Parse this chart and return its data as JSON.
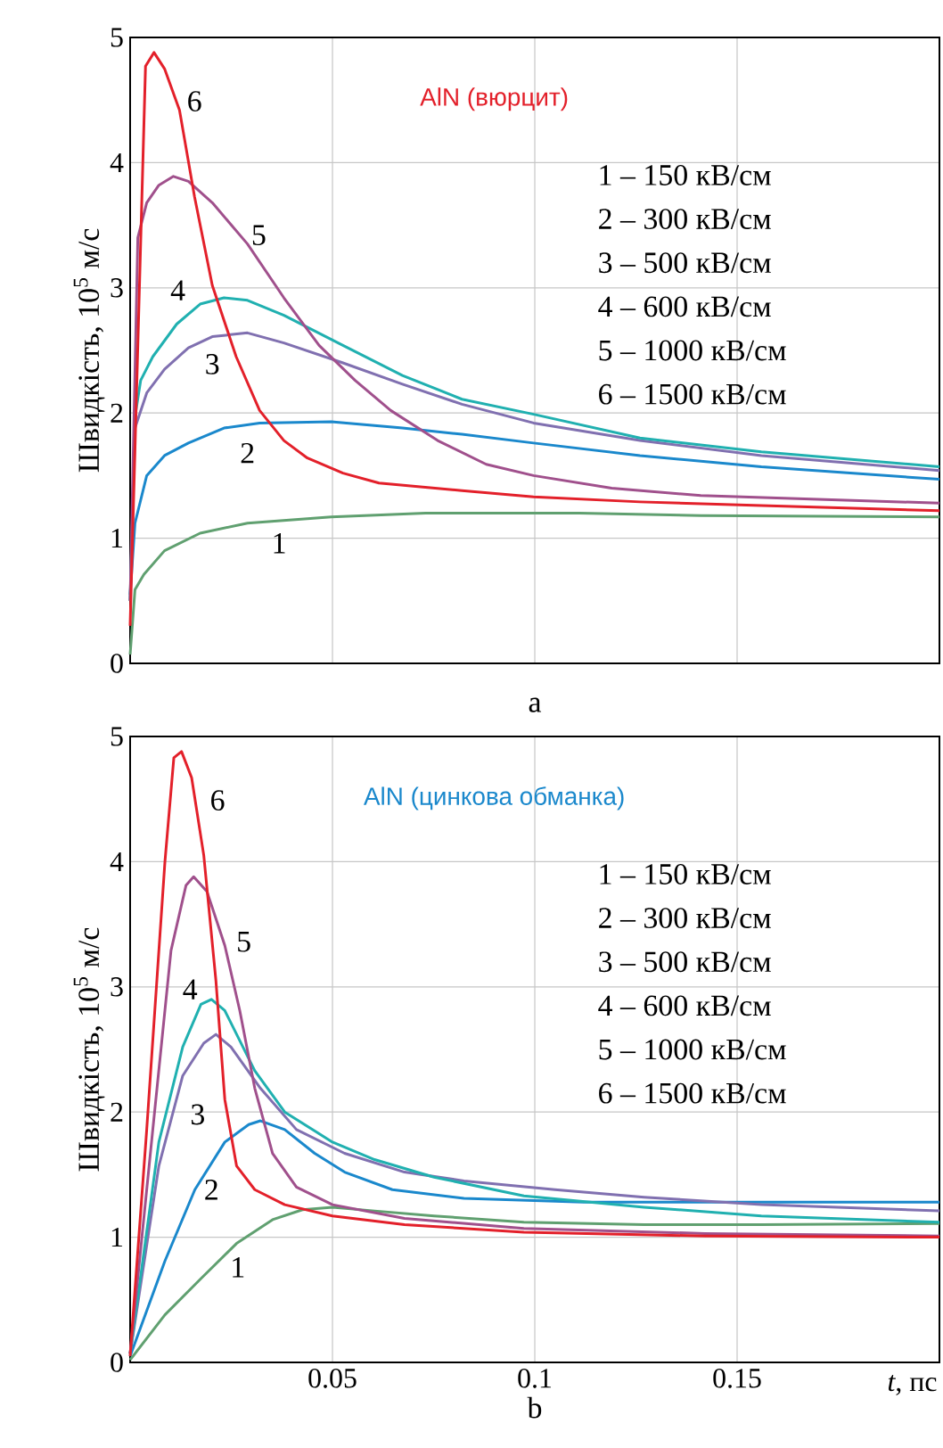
{
  "chart_data": [
    {
      "type": "line",
      "title": "AlN (вюрцит)",
      "subtitle": "a",
      "ylabel": "Швидкість, 10$^{5}$ м/с",
      "xlim": [
        0,
        0.2
      ],
      "ylim": [
        0,
        5
      ],
      "xticks": [
        0.05,
        0.1,
        0.15
      ],
      "yticks": [
        0,
        1,
        2,
        3,
        4,
        5
      ],
      "grid": true,
      "tick_labels": "y",
      "annotations": [
        "1 –   150 кВ/см",
        "2 –   300 кВ/см",
        "3 –   500 кВ/см",
        "4 –   600 кВ/см",
        "5 – 1000 кВ/см",
        "6 – 1500 кВ/см"
      ],
      "series": [
        {
          "name": "1",
          "color": "#60a070",
          "x": [
            0,
            0.0012,
            0.0034,
            0.0085,
            0.0173,
            0.029,
            0.0497,
            0.073,
            0.111,
            0.141,
            0.2
          ],
          "values": [
            0.07,
            0.59,
            0.71,
            0.9,
            1.04,
            1.12,
            1.17,
            1.2,
            1.2,
            1.18,
            1.17
          ]
        },
        {
          "name": "2",
          "color": "#1a88cc",
          "x": [
            0,
            0.0012,
            0.0041,
            0.0085,
            0.0144,
            0.0232,
            0.032,
            0.0497,
            0.0673,
            0.082,
            0.0997,
            0.126,
            0.156,
            0.2
          ],
          "values": [
            0.55,
            1.12,
            1.5,
            1.66,
            1.76,
            1.88,
            1.92,
            1.93,
            1.88,
            1.83,
            1.76,
            1.66,
            1.57,
            1.47
          ]
        },
        {
          "name": "3",
          "color": "#8070b0",
          "x": [
            0,
            0.0012,
            0.0041,
            0.0085,
            0.0144,
            0.0203,
            0.029,
            0.038,
            0.0526,
            0.0673,
            0.082,
            0.0997,
            0.126,
            0.156,
            0.2
          ],
          "values": [
            0.5,
            1.88,
            2.16,
            2.35,
            2.52,
            2.61,
            2.64,
            2.56,
            2.4,
            2.23,
            2.07,
            1.92,
            1.78,
            1.66,
            1.54
          ]
        },
        {
          "name": "4",
          "color": "#20b0b0",
          "x": [
            0,
            0.0012,
            0.0026,
            0.0056,
            0.0115,
            0.0173,
            0.0232,
            0.029,
            0.038,
            0.0526,
            0.0673,
            0.082,
            0.0997,
            0.126,
            0.156,
            0.2
          ],
          "values": [
            0.5,
            1.97,
            2.26,
            2.45,
            2.71,
            2.87,
            2.92,
            2.9,
            2.78,
            2.54,
            2.3,
            2.11,
            1.99,
            1.8,
            1.69,
            1.57
          ]
        },
        {
          "name": "5",
          "color": "#a0508c",
          "x": [
            0,
            0.0019,
            0.0041,
            0.0071,
            0.0107,
            0.0144,
            0.0203,
            0.029,
            0.038,
            0.0467,
            0.0556,
            0.0644,
            0.076,
            0.088,
            0.0997,
            0.119,
            0.141,
            0.17,
            0.2
          ],
          "values": [
            0.5,
            3.4,
            3.68,
            3.82,
            3.89,
            3.85,
            3.68,
            3.35,
            2.92,
            2.54,
            2.26,
            2.02,
            1.78,
            1.59,
            1.5,
            1.4,
            1.34,
            1.31,
            1.28
          ]
        },
        {
          "name": "6",
          "color": "#e3202a",
          "x": [
            0,
            0.0038,
            0.0059,
            0.0085,
            0.0122,
            0.0159,
            0.0203,
            0.0262,
            0.032,
            0.038,
            0.0438,
            0.0526,
            0.0615,
            0.082,
            0.0997,
            0.126,
            0.156,
            0.2
          ],
          "values": [
            0.3,
            4.77,
            4.88,
            4.75,
            4.42,
            3.73,
            3.02,
            2.45,
            2.02,
            1.78,
            1.64,
            1.52,
            1.44,
            1.38,
            1.33,
            1.29,
            1.26,
            1.22
          ]
        }
      ]
    },
    {
      "type": "line",
      "title": "AlN (цинкова обманка)",
      "subtitle": "b",
      "ylabel": "Швидкість, 10$^{5}$ м/с",
      "xlabel": "*t*, пс",
      "xlim": [
        0,
        0.2
      ],
      "ylim": [
        0,
        5
      ],
      "xticks": [
        0.05,
        0.1,
        0.15
      ],
      "yticks": [
        0,
        1,
        2,
        3,
        4,
        5
      ],
      "grid": true,
      "annotations": [
        "1 –   150 кВ/см",
        "2 –   300 кВ/см",
        "3 –   500 кВ/см",
        "4 –   600 кВ/см",
        "5 – 1000 кВ/см",
        "6 – 1500 кВ/см"
      ],
      "series": [
        {
          "name": "1",
          "color": "#60a070",
          "x": [
            0,
            0.0086,
            0.0175,
            0.0263,
            0.0352,
            0.0426,
            0.05,
            0.0604,
            0.0751,
            0.0973,
            0.127,
            0.156,
            0.2
          ],
          "values": [
            0.02,
            0.38,
            0.67,
            0.95,
            1.14,
            1.22,
            1.24,
            1.21,
            1.17,
            1.12,
            1.1,
            1.1,
            1.11
          ]
        },
        {
          "name": "2",
          "color": "#1a88cc",
          "x": [
            0,
            0.0086,
            0.016,
            0.0234,
            0.0293,
            0.0322,
            0.0382,
            0.0456,
            0.053,
            0.0648,
            0.0825,
            0.112,
            0.142,
            0.2
          ],
          "values": [
            0.05,
            0.81,
            1.38,
            1.76,
            1.9,
            1.93,
            1.86,
            1.67,
            1.52,
            1.38,
            1.31,
            1.28,
            1.28,
            1.28
          ]
        },
        {
          "name": "3",
          "color": "#8070b0",
          "x": [
            0,
            0.0071,
            0.013,
            0.0182,
            0.0212,
            0.0249,
            0.0322,
            0.0411,
            0.053,
            0.0678,
            0.0825,
            0.105,
            0.127,
            0.156,
            0.2
          ],
          "values": [
            0.07,
            1.57,
            2.29,
            2.55,
            2.62,
            2.52,
            2.19,
            1.86,
            1.67,
            1.52,
            1.45,
            1.38,
            1.32,
            1.26,
            1.21
          ]
        },
        {
          "name": "4",
          "color": "#20b0b0",
          "x": [
            0,
            0.0071,
            0.013,
            0.0175,
            0.0201,
            0.0234,
            0.0308,
            0.0382,
            0.05,
            0.0604,
            0.0751,
            0.0973,
            0.127,
            0.156,
            0.2
          ],
          "values": [
            0.07,
            1.76,
            2.52,
            2.86,
            2.9,
            2.81,
            2.33,
            2.0,
            1.76,
            1.62,
            1.48,
            1.33,
            1.24,
            1.17,
            1.12
          ]
        },
        {
          "name": "5",
          "color": "#a0508c",
          "x": [
            0,
            0.0056,
            0.0101,
            0.0138,
            0.0157,
            0.019,
            0.0234,
            0.0271,
            0.0308,
            0.0352,
            0.0411,
            0.05,
            0.0678,
            0.0973,
            0.142,
            0.2
          ],
          "values": [
            0.07,
            1.86,
            3.29,
            3.81,
            3.88,
            3.76,
            3.33,
            2.81,
            2.19,
            1.67,
            1.4,
            1.26,
            1.15,
            1.07,
            1.03,
            1.01
          ]
        },
        {
          "name": "6",
          "color": "#e3202a",
          "x": [
            0,
            0.0041,
            0.0086,
            0.0108,
            0.0127,
            0.0152,
            0.0182,
            0.0212,
            0.0234,
            0.0263,
            0.0308,
            0.0382,
            0.05,
            0.0678,
            0.0973,
            0.142,
            0.2
          ],
          "values": [
            0.05,
            1.86,
            4.0,
            4.83,
            4.88,
            4.67,
            4.05,
            3.05,
            2.1,
            1.57,
            1.38,
            1.26,
            1.17,
            1.1,
            1.04,
            1.01,
            1.0
          ]
        }
      ]
    }
  ]
}
